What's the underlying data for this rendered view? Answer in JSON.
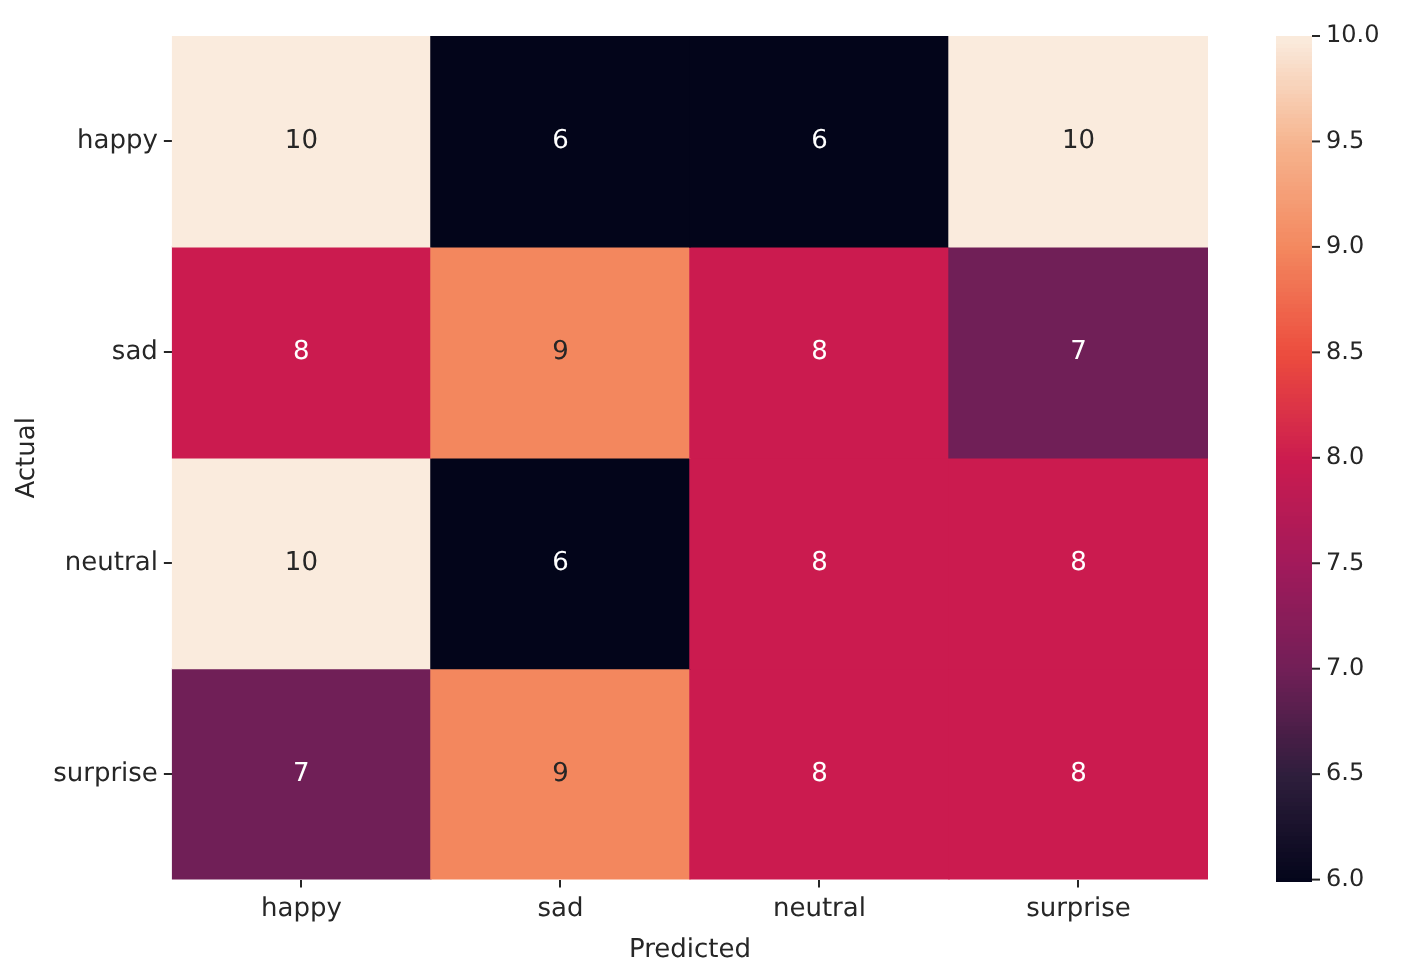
{
  "chart_data": {
    "type": "heatmap",
    "xlabel": "Predicted",
    "ylabel": "Actual",
    "categories": [
      "happy",
      "sad",
      "neutral",
      "surprise"
    ],
    "y_categories": [
      "happy",
      "sad",
      "neutral",
      "surprise"
    ],
    "cells": [
      [
        10,
        6,
        6,
        10
      ],
      [
        8,
        9,
        8,
        7
      ],
      [
        10,
        6,
        8,
        8
      ],
      [
        7,
        9,
        8,
        8
      ]
    ],
    "data_labels": true,
    "clim": [
      6,
      10
    ],
    "cticks": [
      {
        "value": 6,
        "label": "6.0"
      },
      {
        "value": 6.5,
        "label": "6.5"
      },
      {
        "value": 7,
        "label": "7.0"
      },
      {
        "value": 7.5,
        "label": "7.5"
      },
      {
        "value": 8,
        "label": "8.0"
      },
      {
        "value": 8.5,
        "label": "8.5"
      },
      {
        "value": 9,
        "label": "9.0"
      },
      {
        "value": 9.5,
        "label": "9.5"
      },
      {
        "value": 10,
        "label": "10.0"
      }
    ]
  }
}
